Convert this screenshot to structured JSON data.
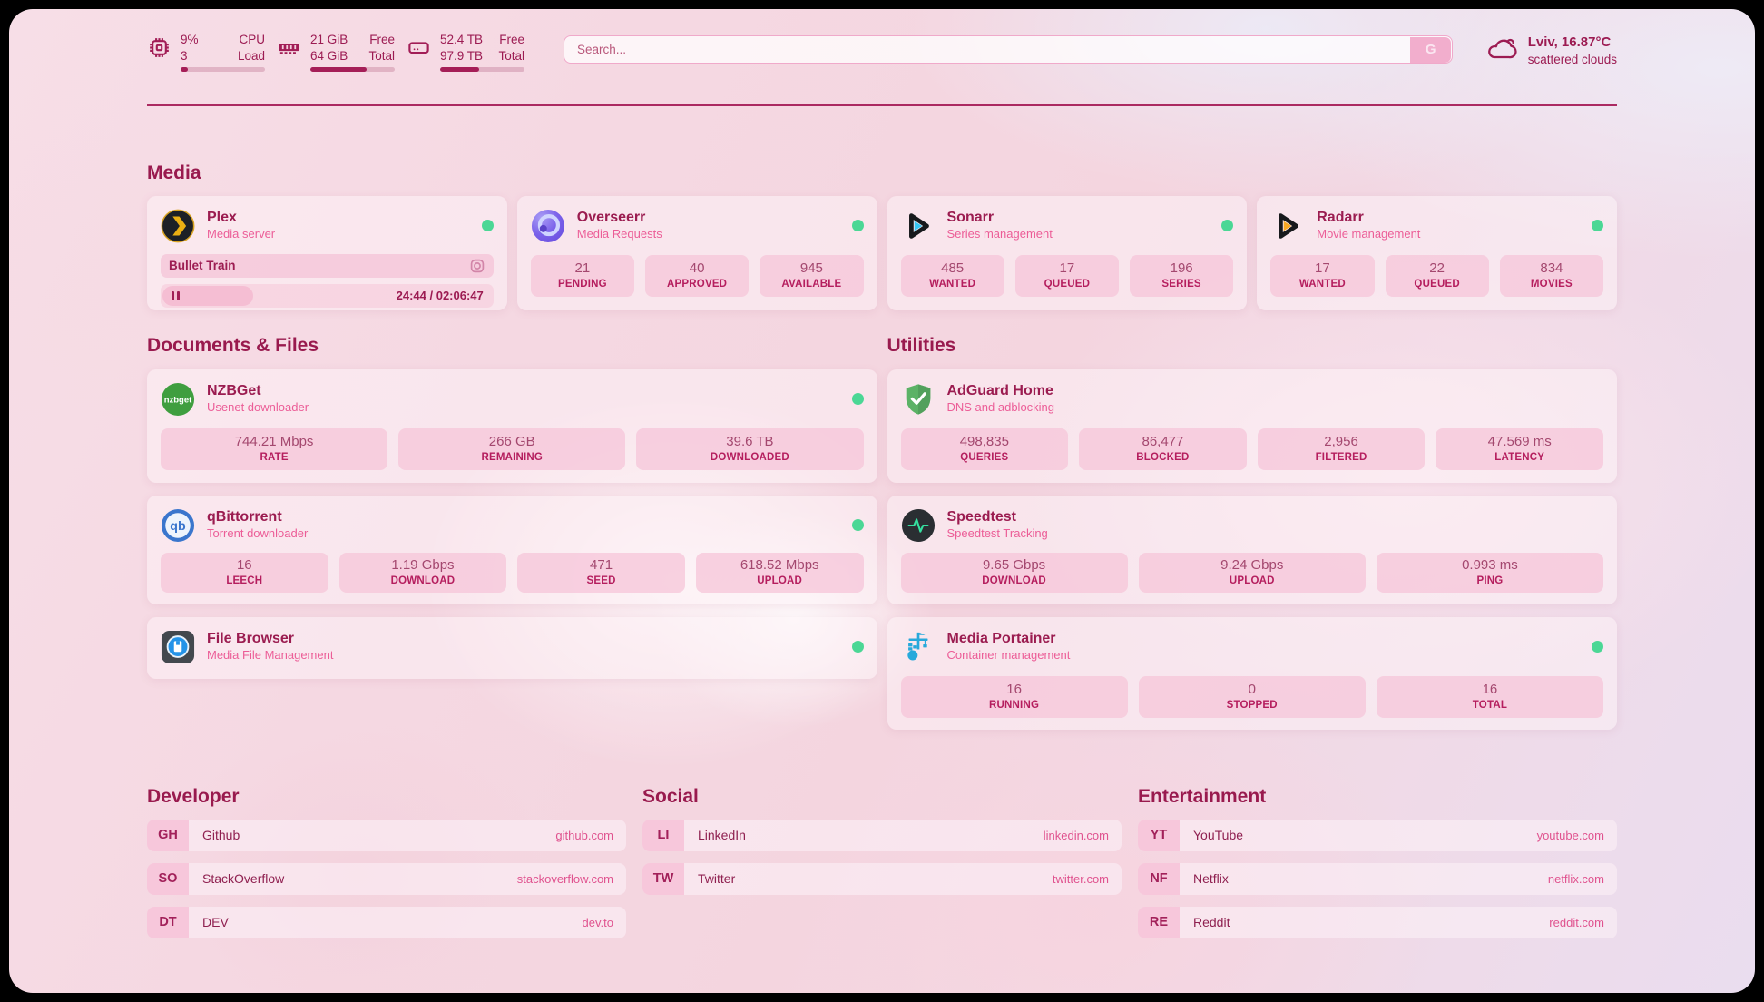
{
  "colors": {
    "accent": "#a21d56",
    "status_online": "#4bd795",
    "tile_bg": "#f7c7da",
    "heading": "#991a4e"
  },
  "header": {
    "resources": [
      {
        "icon": "cpu-icon",
        "values": [
          "9%",
          "3"
        ],
        "labels": [
          "CPU",
          "Load"
        ],
        "bar_percent": 9
      },
      {
        "icon": "ram-icon",
        "values": [
          "21 GiB",
          "64 GiB"
        ],
        "labels": [
          "Free",
          "Total"
        ],
        "bar_percent": 67
      },
      {
        "icon": "disk-icon",
        "values": [
          "52.4 TB",
          "97.9 TB"
        ],
        "labels": [
          "Free",
          "Total"
        ],
        "bar_percent": 46
      }
    ],
    "search": {
      "placeholder": "Search...",
      "button_label": "G"
    },
    "weather": {
      "icon": "cloud-icon",
      "location_temp": "Lviv, 16.87°C",
      "condition": "scattered clouds"
    }
  },
  "media": {
    "title": "Media",
    "plex": {
      "name": "Plex",
      "subtitle": "Media server",
      "online": true,
      "now_playing": "Bullet Train",
      "time": "24:44 / 02:06:47"
    },
    "overseerr": {
      "name": "Overseerr",
      "subtitle": "Media Requests",
      "online": true,
      "stats": [
        {
          "value": "21",
          "label": "PENDING"
        },
        {
          "value": "40",
          "label": "APPROVED"
        },
        {
          "value": "945",
          "label": "AVAILABLE"
        }
      ]
    },
    "sonarr": {
      "name": "Sonarr",
      "subtitle": "Series management",
      "online": true,
      "stats": [
        {
          "value": "485",
          "label": "WANTED"
        },
        {
          "value": "17",
          "label": "QUEUED"
        },
        {
          "value": "196",
          "label": "SERIES"
        }
      ]
    },
    "radarr": {
      "name": "Radarr",
      "subtitle": "Movie management",
      "online": true,
      "stats": [
        {
          "value": "17",
          "label": "WANTED"
        },
        {
          "value": "22",
          "label": "QUEUED"
        },
        {
          "value": "834",
          "label": "MOVIES"
        }
      ]
    }
  },
  "documents": {
    "title": "Documents & Files",
    "nzbget": {
      "name": "NZBGet",
      "subtitle": "Usenet downloader",
      "online": true,
      "stats": [
        {
          "value": "744.21 Mbps",
          "label": "RATE"
        },
        {
          "value": "266 GB",
          "label": "REMAINING"
        },
        {
          "value": "39.6 TB",
          "label": "DOWNLOADED"
        }
      ]
    },
    "qbittorrent": {
      "name": "qBittorrent",
      "subtitle": "Torrent downloader",
      "online": true,
      "stats": [
        {
          "value": "16",
          "label": "LEECH"
        },
        {
          "value": "1.19 Gbps",
          "label": "DOWNLOAD"
        },
        {
          "value": "471",
          "label": "SEED"
        },
        {
          "value": "618.52 Mbps",
          "label": "UPLOAD"
        }
      ]
    },
    "filebrowser": {
      "name": "File Browser",
      "subtitle": "Media File Management",
      "online": true
    }
  },
  "utilities": {
    "title": "Utilities",
    "adguard": {
      "name": "AdGuard Home",
      "subtitle": "DNS and adblocking",
      "stats": [
        {
          "value": "498,835",
          "label": "QUERIES"
        },
        {
          "value": "86,477",
          "label": "BLOCKED"
        },
        {
          "value": "2,956",
          "label": "FILTERED"
        },
        {
          "value": "47.569 ms",
          "label": "LATENCY"
        }
      ]
    },
    "speedtest": {
      "name": "Speedtest",
      "subtitle": "Speedtest Tracking",
      "stats": [
        {
          "value": "9.65 Gbps",
          "label": "DOWNLOAD"
        },
        {
          "value": "9.24 Gbps",
          "label": "UPLOAD"
        },
        {
          "value": "0.993 ms",
          "label": "PING"
        }
      ]
    },
    "portainer": {
      "name": "Media Portainer",
      "subtitle": "Container management",
      "online": true,
      "stats": [
        {
          "value": "16",
          "label": "RUNNING"
        },
        {
          "value": "0",
          "label": "STOPPED"
        },
        {
          "value": "16",
          "label": "TOTAL"
        }
      ]
    }
  },
  "bookmarks": {
    "developer": {
      "title": "Developer",
      "items": [
        {
          "abbr": "GH",
          "name": "Github",
          "url": "github.com"
        },
        {
          "abbr": "SO",
          "name": "StackOverflow",
          "url": "stackoverflow.com"
        },
        {
          "abbr": "DT",
          "name": "DEV",
          "url": "dev.to"
        }
      ]
    },
    "social": {
      "title": "Social",
      "items": [
        {
          "abbr": "LI",
          "name": "LinkedIn",
          "url": "linkedin.com"
        },
        {
          "abbr": "TW",
          "name": "Twitter",
          "url": "twitter.com"
        }
      ]
    },
    "entertainment": {
      "title": "Entertainment",
      "items": [
        {
          "abbr": "YT",
          "name": "YouTube",
          "url": "youtube.com"
        },
        {
          "abbr": "NF",
          "name": "Netflix",
          "url": "netflix.com"
        },
        {
          "abbr": "RE",
          "name": "Reddit",
          "url": "reddit.com"
        }
      ]
    }
  }
}
